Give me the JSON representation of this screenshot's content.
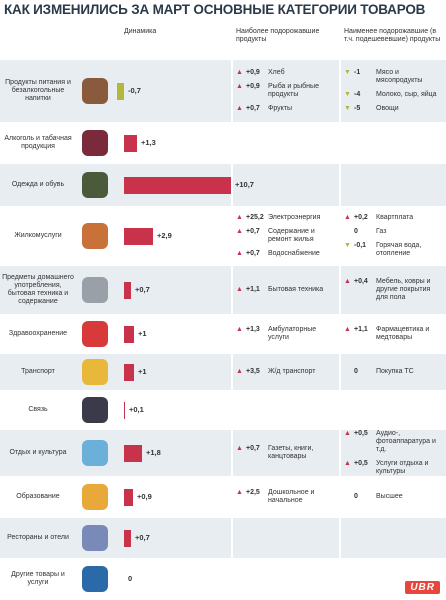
{
  "chart_data": {
    "type": "bar",
    "title": "КАК ИЗМЕНИЛИСЬ ЗА МАРТ ОСНОВНЫЕ КАТЕГОРИИ ТОВАРОВ",
    "headers": [
      "Динамика",
      "Наиболее подорожавшие продукты",
      "Наименее подорожавшие (в т.ч. подешевевшие) продукты"
    ],
    "categories": [
      "Продукты питания и безалкогольные напитки",
      "Алкоголь и табачная продукция",
      "Одежда и обувь",
      "Жилкомуслуги",
      "Предметы домашнего употребления, бытовая техника и содержание",
      "Здравоохранение",
      "Транспорт",
      "Связь",
      "Отдых и культура",
      "Образование",
      "Рестораны и отели",
      "Другие товары и услуги"
    ],
    "values": [
      -0.7,
      1.3,
      10.7,
      2.9,
      0.7,
      1,
      1,
      0.1,
      1.8,
      0.9,
      0.7,
      0
    ],
    "value_labels": [
      "-0,7",
      "+1,3",
      "+10,7",
      "+2,9",
      "+0,7",
      "+1",
      "+1",
      "+0,1",
      "+1,8",
      "+0,9",
      "+0,7",
      "0"
    ],
    "colors": {
      "positive": "#c8324a",
      "negative": "#b3b83c"
    },
    "most": [
      [
        {
          "value": 0.9,
          "label": "+0,9",
          "name": "Хлеб"
        },
        {
          "value": 0.9,
          "label": "+0,9",
          "name": "Рыба и рыбные продукты"
        },
        {
          "value": 0.7,
          "label": "+0,7",
          "name": "Фрукты"
        }
      ],
      [],
      [],
      [
        {
          "value": 25.2,
          "label": "+25,2",
          "name": "Электроэнергия"
        },
        {
          "value": 0.7,
          "label": "+0,7",
          "name": "Содержание и ремонт жилья"
        },
        {
          "value": 0.7,
          "label": "+0,7",
          "name": "Водоснабжение"
        }
      ],
      [
        {
          "value": 1.1,
          "label": "+1,1",
          "name": "Бытовая техника"
        }
      ],
      [
        {
          "value": 1.3,
          "label": "+1,3",
          "name": "Амбулаторные услуги"
        }
      ],
      [
        {
          "value": 3.5,
          "label": "+3,5",
          "name": "Ж/д транспорт"
        }
      ],
      [],
      [
        {
          "value": 0.7,
          "label": "+0,7",
          "name": "Газеты, книги, канцтовары"
        }
      ],
      [
        {
          "value": 2.5,
          "label": "+2,5",
          "name": "Дошкольное и начальное"
        }
      ],
      [],
      []
    ],
    "least": [
      [
        {
          "value": -1,
          "label": "-1",
          "name": "Мясо и мясопродукты"
        },
        {
          "value": -4,
          "label": "-4",
          "name": "Молоко, сыр, яйца"
        },
        {
          "value": -5,
          "label": "-5",
          "name": "Овощи"
        }
      ],
      [],
      [],
      [
        {
          "value": 0.2,
          "label": "+0,2",
          "name": "Квартплата"
        },
        {
          "value": 0,
          "label": "0",
          "name": "Газ"
        },
        {
          "value": -0.1,
          "label": "-0,1",
          "name": "Горячая вода, отопление"
        }
      ],
      [
        {
          "value": 0.4,
          "label": "+0,4",
          "name": "Мебель, ковры и другие покрытия для пола"
        }
      ],
      [
        {
          "value": 1.1,
          "label": "+1,1",
          "name": "Фармацевтика и медтовары"
        }
      ],
      [
        {
          "value": 0,
          "label": "0",
          "name": "Покупка ТС"
        }
      ],
      [],
      [
        {
          "value": 0.5,
          "label": "+0,5",
          "name": "Аудио-, фотоаппаратура и т.д."
        },
        {
          "value": 0.5,
          "label": "+0,5",
          "name": "Услуги отдыха и культуры"
        }
      ],
      [
        {
          "value": 0,
          "label": "0",
          "name": "Высшее"
        }
      ],
      [],
      []
    ],
    "logo": "UBR"
  }
}
